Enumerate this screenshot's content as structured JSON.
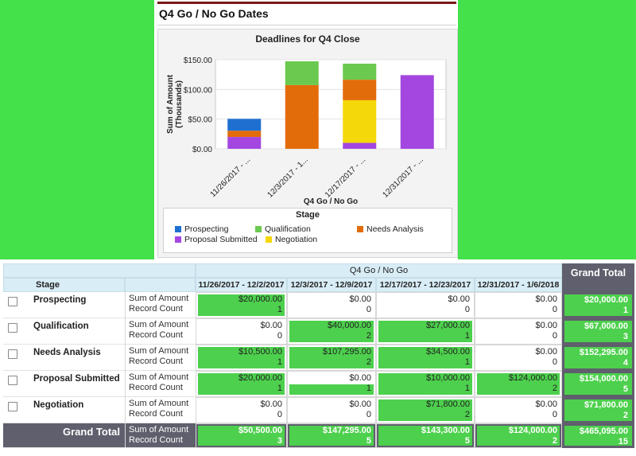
{
  "report": {
    "title": "Q4 Go / No Go Dates"
  },
  "colors": {
    "Prospecting": "#1f6fd1",
    "Qualification": "#6cc94f",
    "Needs Analysis": "#e36c0a",
    "Proposal Submitted": "#a347e0",
    "Negotiation": "#f5d80a",
    "accent_green": "#44e14a",
    "grand_total_bg": "#5f5f6d"
  },
  "chart_data": {
    "type": "bar",
    "stacked": true,
    "title": "Deadlines for Q4 Close",
    "xlabel": "Q4 Go / No Go",
    "ylabel": "Sum of Amount (Thousands)",
    "ylim": [
      0,
      150
    ],
    "yticks": [
      "$0.00",
      "$50.00",
      "$100.00",
      "$150.00"
    ],
    "categories": [
      "11/26/2017 - ...",
      "12/3/2017 - 1...",
      "12/17/2017 - ...",
      "12/31/2017 - ..."
    ],
    "legend_title": "Stage",
    "series": [
      {
        "name": "Prospecting",
        "values": [
          20,
          0,
          0,
          0
        ]
      },
      {
        "name": "Qualification",
        "values": [
          0,
          40,
          27,
          0
        ]
      },
      {
        "name": "Needs Analysis",
        "values": [
          10.5,
          107.295,
          34.5,
          0
        ]
      },
      {
        "name": "Proposal Submitted",
        "values": [
          20,
          0,
          10,
          124
        ]
      },
      {
        "name": "Negotiation",
        "values": [
          0,
          0,
          71.8,
          0
        ]
      }
    ]
  },
  "table": {
    "group_header": "Q4 Go / No Go",
    "grand_total_label": "Grand Total",
    "stage_header": "Stage",
    "columns": [
      "11/26/2017 - 12/2/2017",
      "12/3/2017 - 12/9/2017",
      "12/17/2017 - 12/23/2017",
      "12/31/2017 - 1/6/2018"
    ],
    "metric_labels": [
      "Sum of Amount",
      "Record Count"
    ],
    "rows": [
      {
        "stage": "Prospecting",
        "cells": [
          {
            "amount": "$20,000.00",
            "count": "1",
            "fill": 1
          },
          {
            "amount": "$0.00",
            "count": "0",
            "fill": 0
          },
          {
            "amount": "$0.00",
            "count": "0",
            "fill": 0
          },
          {
            "amount": "$0.00",
            "count": "0",
            "fill": 0
          }
        ],
        "total": {
          "amount": "$20,000.00",
          "count": "1"
        }
      },
      {
        "stage": "Qualification",
        "cells": [
          {
            "amount": "$0.00",
            "count": "0",
            "fill": 0
          },
          {
            "amount": "$40,000.00",
            "count": "2",
            "fill": 1
          },
          {
            "amount": "$27,000.00",
            "count": "1",
            "fill": 1
          },
          {
            "amount": "$0.00",
            "count": "0",
            "fill": 0
          }
        ],
        "total": {
          "amount": "$67,000.00",
          "count": "3"
        }
      },
      {
        "stage": "Needs Analysis",
        "cells": [
          {
            "amount": "$10,500.00",
            "count": "1",
            "fill": 1
          },
          {
            "amount": "$107,295.00",
            "count": "2",
            "fill": 1
          },
          {
            "amount": "$34,500.00",
            "count": "1",
            "fill": 1
          },
          {
            "amount": "$0.00",
            "count": "0",
            "fill": 0
          }
        ],
        "total": {
          "amount": "$152,295.00",
          "count": "4"
        }
      },
      {
        "stage": "Proposal Submitted",
        "cells": [
          {
            "amount": "$20,000.00",
            "count": "1",
            "fill": 1
          },
          {
            "amount": "$0.00",
            "count": "1",
            "fill": 0.5
          },
          {
            "amount": "$10,000.00",
            "count": "1",
            "fill": 1
          },
          {
            "amount": "$124,000.00",
            "count": "2",
            "fill": 1
          }
        ],
        "total": {
          "amount": "$154,000.00",
          "count": "5"
        }
      },
      {
        "stage": "Negotiation",
        "cells": [
          {
            "amount": "$0.00",
            "count": "0",
            "fill": 0
          },
          {
            "amount": "$0.00",
            "count": "0",
            "fill": 0
          },
          {
            "amount": "$71,800.00",
            "count": "2",
            "fill": 1
          },
          {
            "amount": "$0.00",
            "count": "0",
            "fill": 0
          }
        ],
        "total": {
          "amount": "$71,800.00",
          "count": "2"
        }
      }
    ],
    "grand": {
      "cells": [
        {
          "amount": "$50,500.00",
          "count": "3"
        },
        {
          "amount": "$147,295.00",
          "count": "5"
        },
        {
          "amount": "$143,300.00",
          "count": "5"
        },
        {
          "amount": "$124,000.00",
          "count": "2"
        }
      ],
      "total": {
        "amount": "$465,095.00",
        "count": "15"
      }
    }
  }
}
